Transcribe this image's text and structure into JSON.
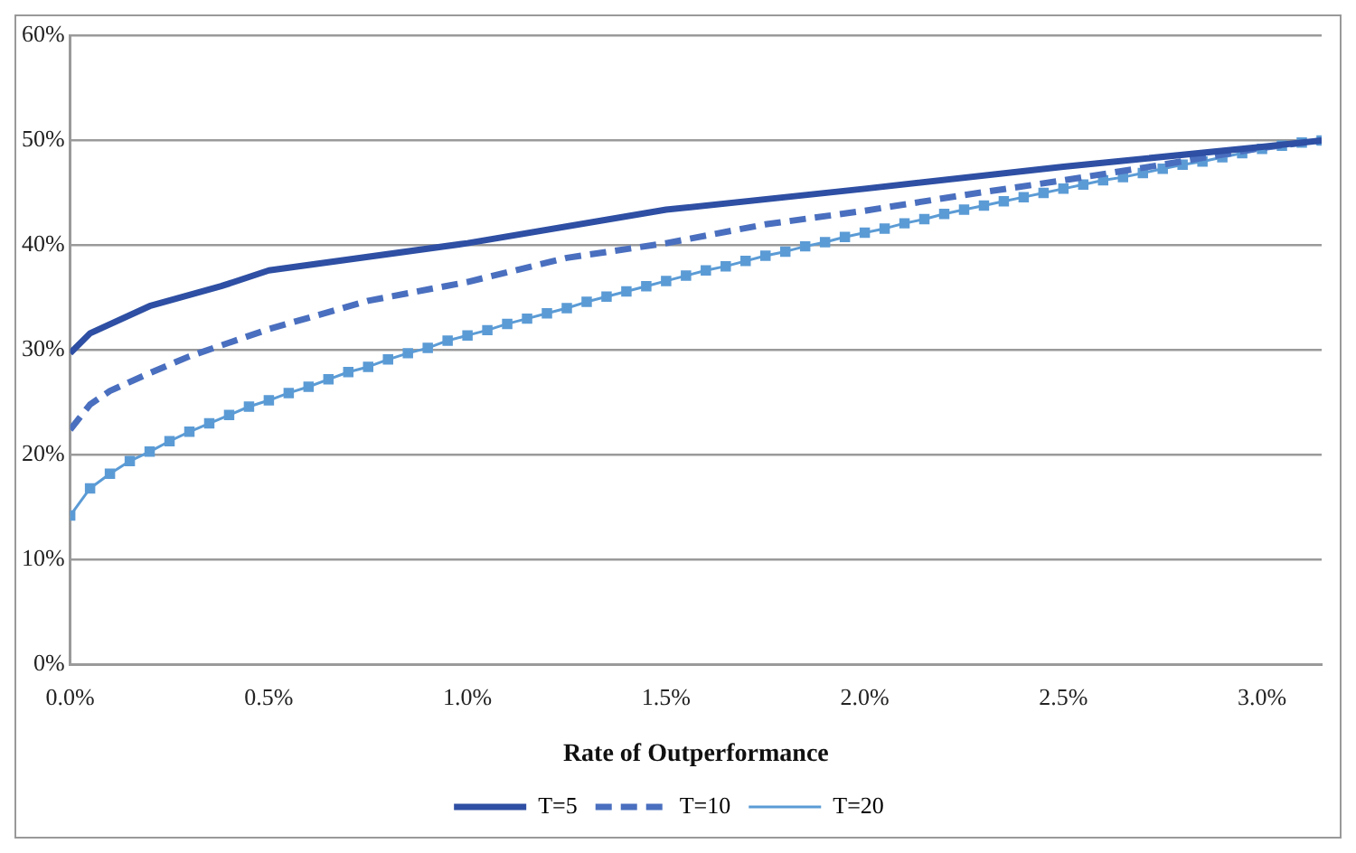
{
  "chart_data": {
    "type": "line",
    "xlabel": "Rate of Outperformance",
    "xlim": [
      0,
      3.15
    ],
    "xticks": [
      {
        "value": 0,
        "label": "0.0%"
      },
      {
        "value": 0.5,
        "label": "0.5%"
      },
      {
        "value": 1,
        "label": "1.0%"
      },
      {
        "value": 1.5,
        "label": "1.5%"
      },
      {
        "value": 2,
        "label": "2.0%"
      },
      {
        "value": 2.5,
        "label": "2.5%"
      },
      {
        "value": 3,
        "label": "3.0%"
      }
    ],
    "ylim": [
      0,
      60
    ],
    "yticks": [
      {
        "value": 0,
        "label": "0%"
      },
      {
        "value": 10,
        "label": "10%"
      },
      {
        "value": 20,
        "label": "20%"
      },
      {
        "value": 30,
        "label": "30%"
      },
      {
        "value": 40,
        "label": "40%"
      },
      {
        "value": 50,
        "label": "50%"
      },
      {
        "value": 60,
        "label": "60%"
      }
    ],
    "grid": "y",
    "legend": "bottom",
    "series": [
      {
        "name": "T=5",
        "color": "#2e4fa3",
        "line_style": "solid",
        "marker": "none",
        "x": [
          0,
          0.05,
          0.2,
          0.38,
          0.5,
          1,
          1.5,
          2,
          2.5,
          3,
          3.15
        ],
        "values": [
          29.7,
          31.6,
          34.2,
          36.1,
          37.6,
          40.2,
          43.4,
          45.4,
          47.5,
          49.4,
          50
        ]
      },
      {
        "name": "T=10",
        "color": "#4a6fbf",
        "line_style": "dashed",
        "marker": "none",
        "x": [
          0,
          0.05,
          0.1,
          0.2,
          0.3,
          0.5,
          0.75,
          1,
          1.25,
          1.5,
          1.75,
          2,
          2.25,
          2.5,
          2.75,
          3,
          3.15
        ],
        "values": [
          22.4,
          24.8,
          26.1,
          27.8,
          29.4,
          32.0,
          34.7,
          36.5,
          38.8,
          40.2,
          42.0,
          43.3,
          44.8,
          46.2,
          47.7,
          49.3,
          50
        ]
      },
      {
        "name": "T=20",
        "color": "#5b9bd5",
        "line_style": "solid",
        "marker": "square",
        "x": [
          0,
          0.05,
          0.1,
          0.15,
          0.2,
          0.25,
          0.3,
          0.35,
          0.4,
          0.45,
          0.5,
          0.55,
          0.6,
          0.65,
          0.7,
          0.75,
          0.8,
          0.85,
          0.9,
          0.95,
          1,
          1.05,
          1.1,
          1.15,
          1.2,
          1.25,
          1.3,
          1.35,
          1.4,
          1.45,
          1.5,
          1.55,
          1.6,
          1.65,
          1.7,
          1.75,
          1.8,
          1.85,
          1.9,
          1.95,
          2,
          2.05,
          2.1,
          2.15,
          2.2,
          2.25,
          2.3,
          2.35,
          2.4,
          2.45,
          2.5,
          2.55,
          2.6,
          2.65,
          2.7,
          2.75,
          2.8,
          2.85,
          2.9,
          2.95,
          3,
          3.05,
          3.1,
          3.15
        ],
        "values": [
          14.2,
          16.8,
          18.2,
          19.4,
          20.3,
          21.3,
          22.2,
          23.0,
          23.8,
          24.6,
          25.2,
          25.9,
          26.5,
          27.2,
          27.9,
          28.4,
          29.1,
          29.7,
          30.2,
          30.9,
          31.4,
          31.9,
          32.5,
          33.0,
          33.5,
          34.0,
          34.6,
          35.1,
          35.6,
          36.1,
          36.6,
          37.1,
          37.6,
          38.0,
          38.5,
          39.0,
          39.4,
          39.9,
          40.3,
          40.8,
          41.2,
          41.6,
          42.1,
          42.5,
          43.0,
          43.4,
          43.8,
          44.2,
          44.6,
          45.0,
          45.4,
          45.8,
          46.2,
          46.5,
          46.9,
          47.3,
          47.7,
          48.0,
          48.4,
          48.8,
          49.2,
          49.5,
          49.8,
          50.0
        ]
      }
    ]
  }
}
